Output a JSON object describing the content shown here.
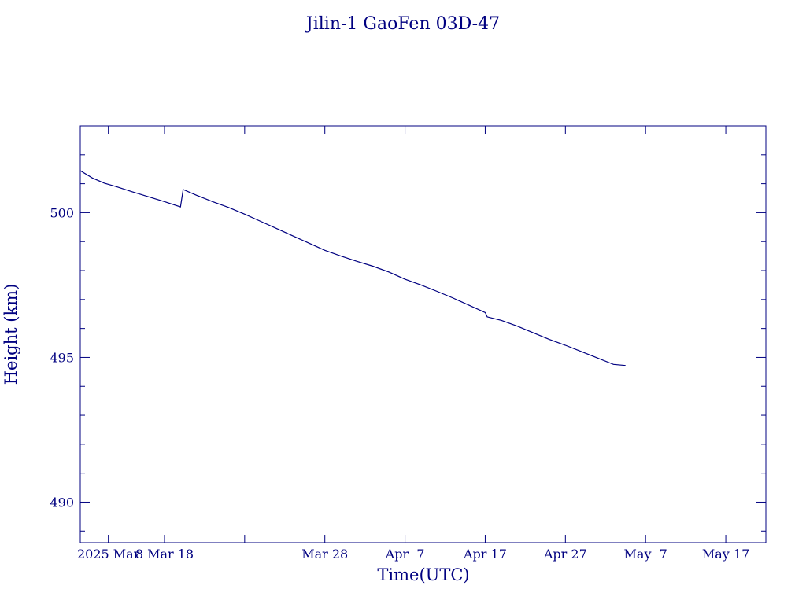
{
  "chart_data": {
    "type": "line",
    "title": "Jilin-1 GaoFen 03D-47",
    "xlabel": "Time(UTC)",
    "ylabel": "Height (km)",
    "color": "#000080",
    "background": "#ffffff",
    "grid": false,
    "x_axis": {
      "type": "date",
      "range": [
        "2025-02-25T12:00",
        "2025-05-22T00:00"
      ],
      "major_ticks": [
        {
          "date": "2025-03-01",
          "label": "2025 Mar"
        },
        {
          "date": "2025-03-08",
          "label": "8 Mar 18"
        },
        {
          "date": "2025-03-18",
          "label": ""
        },
        {
          "date": "2025-03-28",
          "label": "Mar 28"
        },
        {
          "date": "2025-04-07",
          "label": "Apr  7"
        },
        {
          "date": "2025-04-17",
          "label": "Apr 17"
        },
        {
          "date": "2025-04-27",
          "label": "Apr 27"
        },
        {
          "date": "2025-05-07",
          "label": "May  7"
        },
        {
          "date": "2025-05-17",
          "label": "May 17"
        }
      ]
    },
    "y_axis": {
      "range": [
        488.6,
        503.0
      ],
      "major_ticks": [
        490,
        495,
        500
      ],
      "minor_step": 1
    },
    "series": [
      {
        "name": "",
        "points": [
          {
            "t": "2025-02-25T12:00",
            "y": 501.45
          },
          {
            "t": "2025-02-27T00:00",
            "y": 501.2
          },
          {
            "t": "2025-02-28T12:00",
            "y": 501.02
          },
          {
            "t": "2025-03-02T00:00",
            "y": 500.9
          },
          {
            "t": "2025-03-04T00:00",
            "y": 500.72
          },
          {
            "t": "2025-03-06T00:00",
            "y": 500.55
          },
          {
            "t": "2025-03-08T00:00",
            "y": 500.38
          },
          {
            "t": "2025-03-10T00:00",
            "y": 500.2
          },
          {
            "t": "2025-03-10T08:00",
            "y": 500.8
          },
          {
            "t": "2025-03-12T00:00",
            "y": 500.6
          },
          {
            "t": "2025-03-14T00:00",
            "y": 500.38
          },
          {
            "t": "2025-03-16T00:00",
            "y": 500.18
          },
          {
            "t": "2025-03-18T00:00",
            "y": 499.95
          },
          {
            "t": "2025-03-20T00:00",
            "y": 499.7
          },
          {
            "t": "2025-03-22T00:00",
            "y": 499.45
          },
          {
            "t": "2025-03-24T00:00",
            "y": 499.2
          },
          {
            "t": "2025-03-26T00:00",
            "y": 498.95
          },
          {
            "t": "2025-03-28T00:00",
            "y": 498.7
          },
          {
            "t": "2025-03-30T00:00",
            "y": 498.5
          },
          {
            "t": "2025-04-01T00:00",
            "y": 498.32
          },
          {
            "t": "2025-04-03T00:00",
            "y": 498.15
          },
          {
            "t": "2025-04-05T00:00",
            "y": 497.95
          },
          {
            "t": "2025-04-07T00:00",
            "y": 497.7
          },
          {
            "t": "2025-04-09T00:00",
            "y": 497.5
          },
          {
            "t": "2025-04-11T00:00",
            "y": 497.28
          },
          {
            "t": "2025-04-13T00:00",
            "y": 497.05
          },
          {
            "t": "2025-04-15T00:00",
            "y": 496.8
          },
          {
            "t": "2025-04-17T00:00",
            "y": 496.55
          },
          {
            "t": "2025-04-17T06:00",
            "y": 496.4
          },
          {
            "t": "2025-04-19T00:00",
            "y": 496.28
          },
          {
            "t": "2025-04-21T00:00",
            "y": 496.08
          },
          {
            "t": "2025-04-23T00:00",
            "y": 495.85
          },
          {
            "t": "2025-04-25T00:00",
            "y": 495.62
          },
          {
            "t": "2025-04-27T00:00",
            "y": 495.42
          },
          {
            "t": "2025-04-29T00:00",
            "y": 495.2
          },
          {
            "t": "2025-05-01T00:00",
            "y": 494.98
          },
          {
            "t": "2025-05-03T00:00",
            "y": 494.76
          },
          {
            "t": "2025-05-04T12:00",
            "y": 494.72
          }
        ]
      }
    ]
  }
}
